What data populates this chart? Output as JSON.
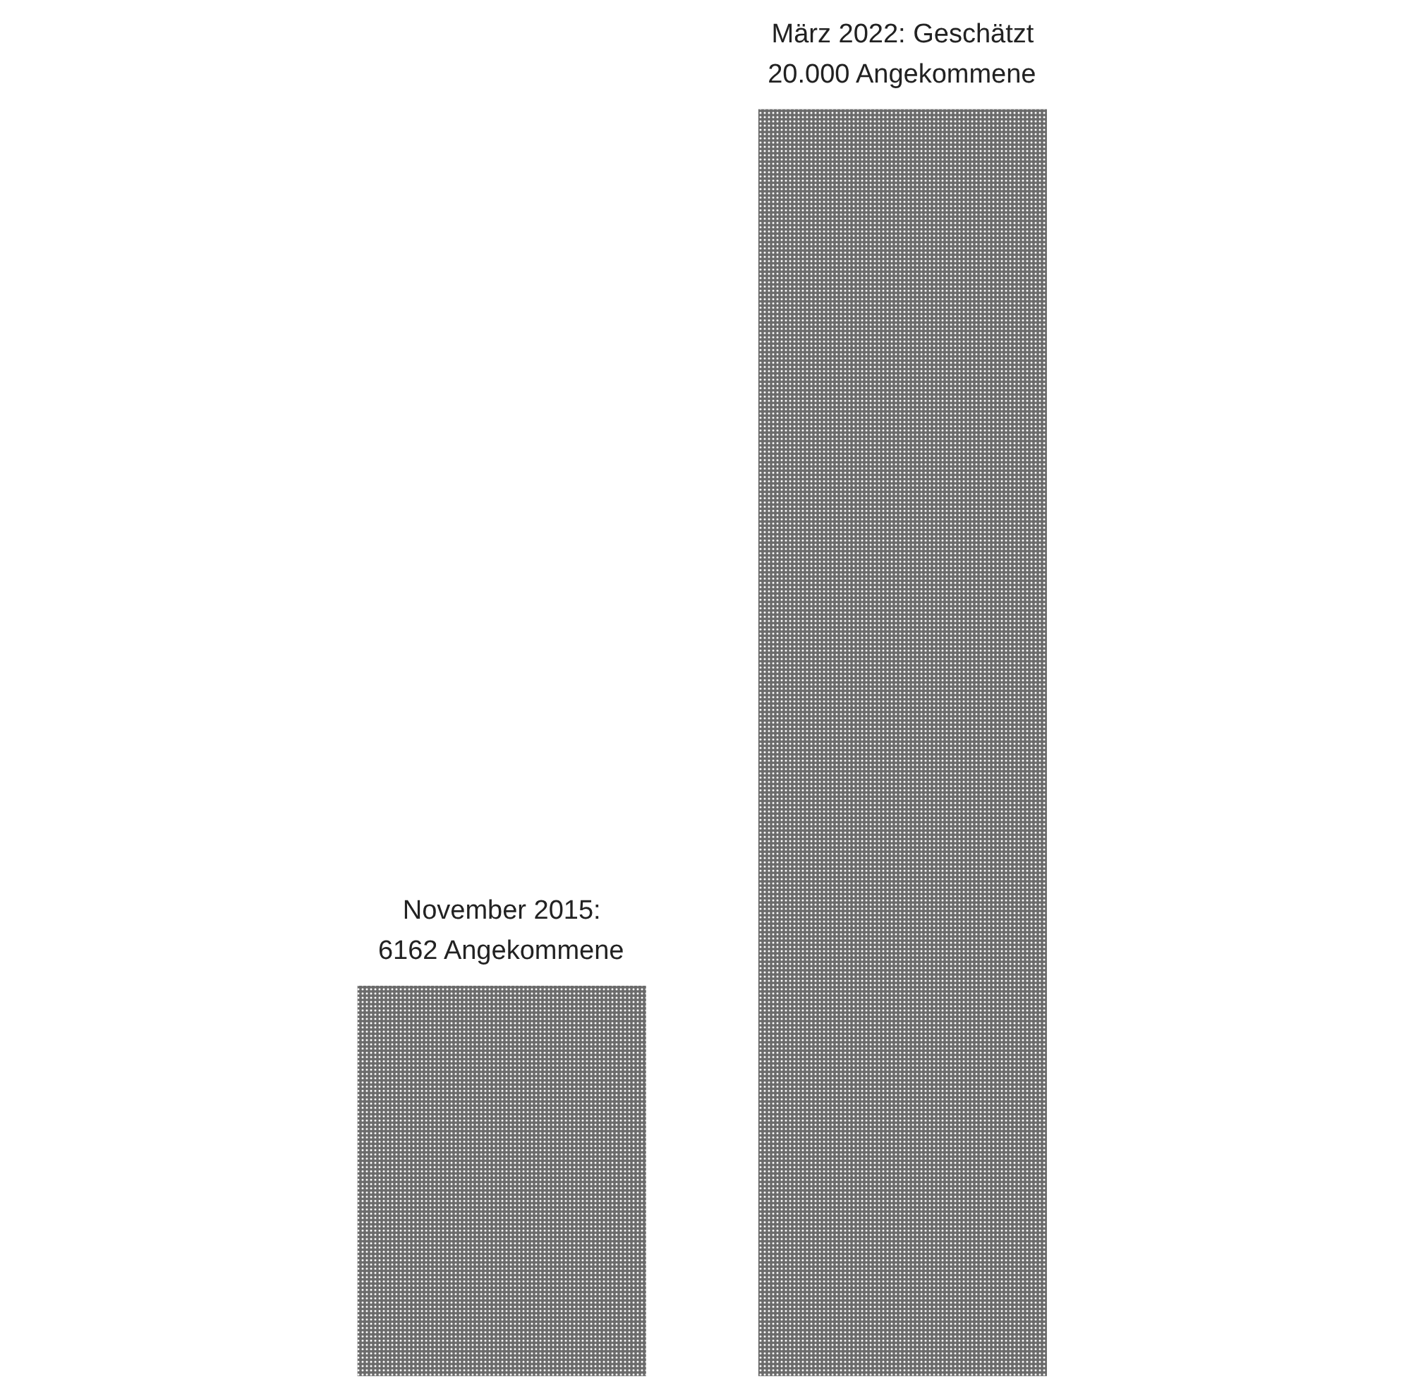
{
  "chart_data": {
    "type": "bar",
    "categories": [
      null,
      null
    ],
    "values": [
      6162,
      20000
    ],
    "color": "#6b6b6b",
    "value_labels": [
      "November 2015:\n6162 Angekommene",
      "März 2022: Geschätzt\n20.000 Angekommene"
    ],
    "grid": false,
    "tick_labels": false
  }
}
